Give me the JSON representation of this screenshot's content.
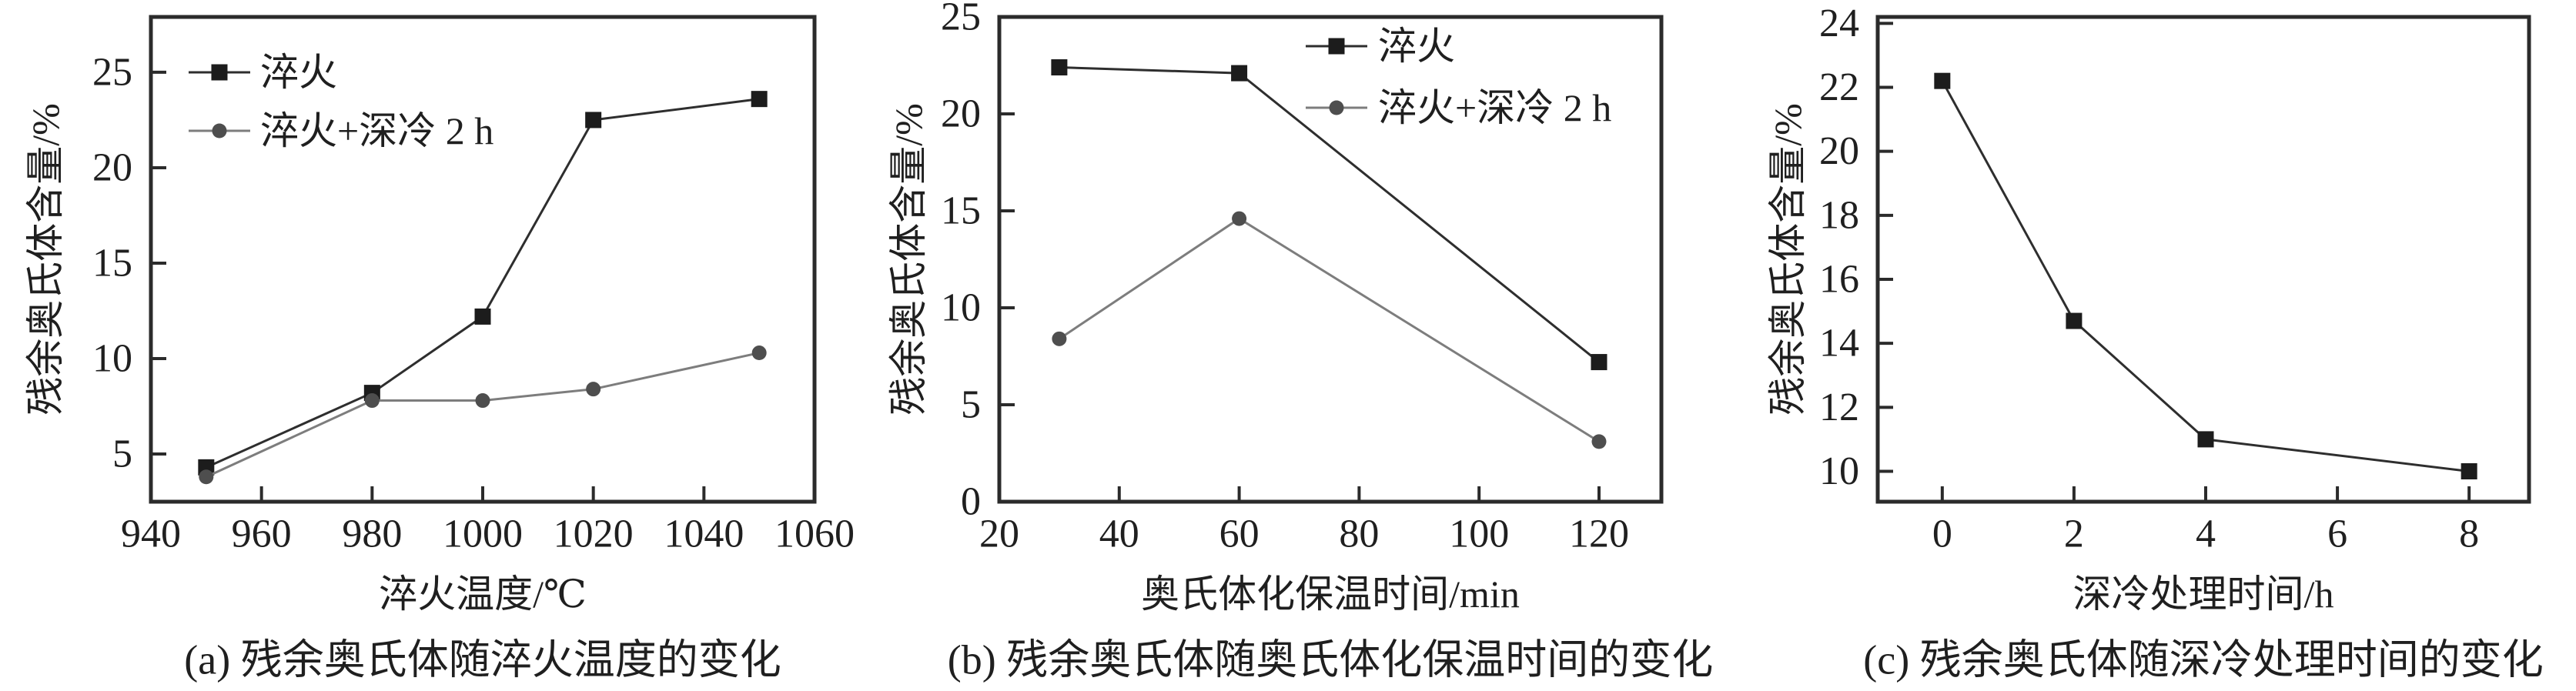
{
  "figure": {
    "background": "#ffffff",
    "text_color": "#1f1f1f",
    "axis_color": "#2b2b2b"
  },
  "chart_data": [
    {
      "id": "a",
      "type": "line",
      "caption": "(a) 残余奥氏体随淬火温度的变化",
      "xlabel": "淬火温度/℃",
      "ylabel": "残余奥氏体含量/%",
      "xlim": [
        940,
        1060
      ],
      "ylim": [
        2.5,
        27.9
      ],
      "x_ticks": [
        940,
        960,
        980,
        1000,
        1020,
        1040,
        1060
      ],
      "y_ticks": [
        5,
        10,
        15,
        20,
        25
      ],
      "grid": false,
      "legend_position": "top-left",
      "series": [
        {
          "name": "淬火",
          "marker": "square",
          "marker_color": "#1c1c1c",
          "line_color": "#2e2e2e",
          "points": [
            [
              950,
              4.3
            ],
            [
              980,
              8.2
            ],
            [
              1000,
              12.2
            ],
            [
              1020,
              22.5
            ],
            [
              1050,
              23.6
            ]
          ]
        },
        {
          "name": "淬火+深冷 2 h",
          "marker": "circle",
          "marker_color": "#4e4e4e",
          "line_color": "#7d7d7d",
          "points": [
            [
              950,
              3.8
            ],
            [
              980,
              7.8
            ],
            [
              1000,
              7.8
            ],
            [
              1020,
              8.4
            ],
            [
              1050,
              10.3
            ]
          ]
        }
      ]
    },
    {
      "id": "b",
      "type": "line",
      "caption": "(b) 残余奥氏体随奥氏体化保温时间的变化",
      "xlabel": "奥氏体化保温时间/min",
      "ylabel": "残余奥氏体含量/%",
      "xlim": [
        20,
        130.4
      ],
      "ylim": [
        0,
        25
      ],
      "x_ticks": [
        20,
        40,
        60,
        80,
        100,
        120
      ],
      "y_ticks": [
        0,
        5,
        10,
        15,
        20,
        25
      ],
      "grid": false,
      "legend_position": "top-right",
      "series": [
        {
          "name": "淬火",
          "marker": "square",
          "marker_color": "#1c1c1c",
          "line_color": "#2e2e2e",
          "points": [
            [
              30,
              22.4
            ],
            [
              60,
              22.1
            ],
            [
              120,
              7.2
            ]
          ]
        },
        {
          "name": "淬火+深冷 2 h",
          "marker": "circle",
          "marker_color": "#4e4e4e",
          "line_color": "#7d7d7d",
          "points": [
            [
              30,
              8.4
            ],
            [
              60,
              14.6
            ],
            [
              120,
              3.1
            ]
          ]
        }
      ]
    },
    {
      "id": "c",
      "type": "line",
      "caption": "(c) 残余奥氏体随深冷处理时间的变化",
      "xlabel": "深冷处理时间/h",
      "ylabel": "残余奥氏体含量/%",
      "xlim": [
        -0.98,
        8.91
      ],
      "ylim": [
        9.05,
        24.2
      ],
      "x_ticks": [
        0,
        2,
        4,
        6,
        8
      ],
      "y_ticks": [
        10,
        12,
        14,
        16,
        18,
        20,
        22,
        24
      ],
      "grid": false,
      "legend_position": "none",
      "series": [
        {
          "name": "淬火",
          "marker": "square",
          "marker_color": "#1c1c1c",
          "line_color": "#2e2e2e",
          "points": [
            [
              0,
              22.2
            ],
            [
              2,
              14.7
            ],
            [
              4,
              11.0
            ],
            [
              8,
              10.0
            ]
          ]
        }
      ]
    }
  ]
}
